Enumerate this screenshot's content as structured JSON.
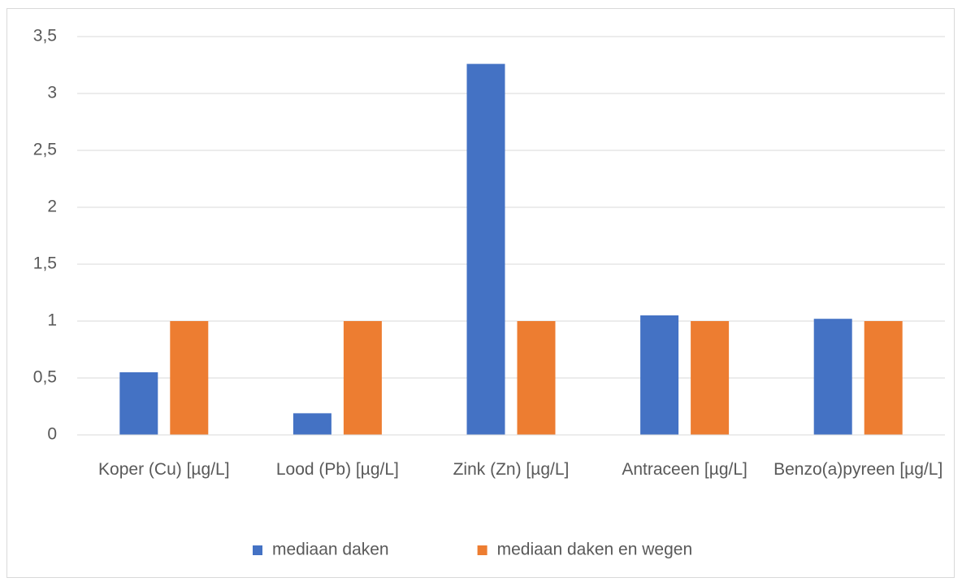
{
  "chart_data": {
    "type": "bar",
    "categories": [
      "Koper (Cu) [µg/L]",
      "Lood (Pb) [µg/L]",
      "Zink (Zn) [µg/L]",
      "Antraceen [µg/L]",
      "Benzo(a)pyreen [µg/L]"
    ],
    "series": [
      {
        "name": "mediaan daken",
        "color": "#4472c4",
        "values": [
          0.55,
          0.19,
          3.26,
          1.05,
          1.02
        ]
      },
      {
        "name": "mediaan daken en wegen",
        "color": "#ed7d31",
        "values": [
          1,
          1,
          1,
          1,
          1
        ]
      }
    ],
    "ylim": [
      0,
      3.5
    ],
    "yticks": [
      0,
      {
        "value": 0.5,
        "label": "0,5"
      },
      1,
      {
        "value": 1.5,
        "label": "1,5"
      },
      2,
      {
        "value": 2.5,
        "label": "2,5"
      },
      3,
      {
        "value": 3.5,
        "label": "3,5"
      }
    ],
    "grid": true,
    "legend": "bottom"
  }
}
